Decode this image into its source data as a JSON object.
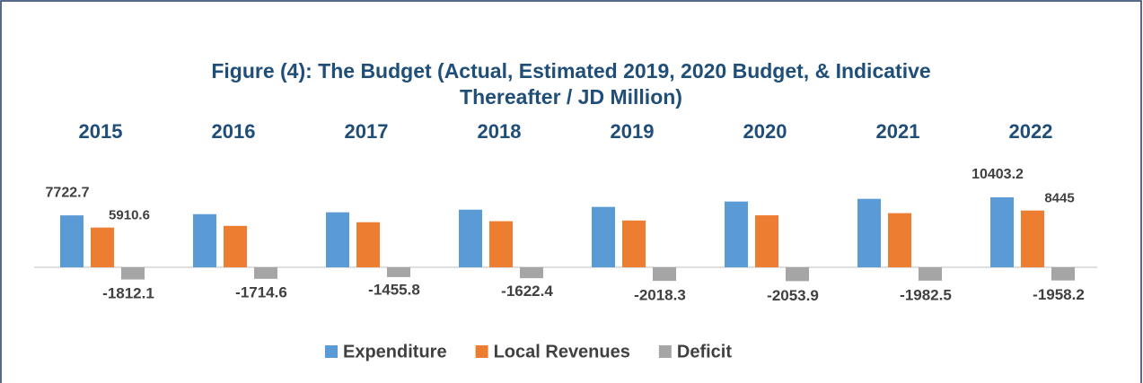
{
  "chart_data": {
    "type": "bar",
    "title": "Figure (4): The Budget (Actual, Estimated 2019, 2020 Budget, & Indicative Thereafter / JD Million)",
    "categories": [
      "2015",
      "2016",
      "2017",
      "2018",
      "2019",
      "2020",
      "2021",
      "2022"
    ],
    "series": [
      {
        "name": "Expenditure",
        "color": "#5b9bd5",
        "values": [
          7722.7,
          7900,
          8180,
          8570,
          8980,
          9780,
          10180,
          10403.2
        ],
        "value_labels": [
          "7722.7",
          null,
          null,
          null,
          null,
          null,
          null,
          "10403.2"
        ]
      },
      {
        "name": "Local Revenues",
        "color": "#ed7d31",
        "values": [
          5910.6,
          6160,
          6700,
          6850,
          6960,
          7730,
          8050,
          8445
        ],
        "value_labels": [
          "5910.6",
          null,
          null,
          null,
          null,
          null,
          null,
          "8445"
        ]
      },
      {
        "name": "Deficit",
        "color": "#a5a5a5",
        "values": [
          -1812.1,
          -1714.6,
          -1455.8,
          -1622.4,
          -2018.3,
          -2053.9,
          -1982.5,
          -1958.2
        ]
      }
    ],
    "legend": "bottom"
  }
}
